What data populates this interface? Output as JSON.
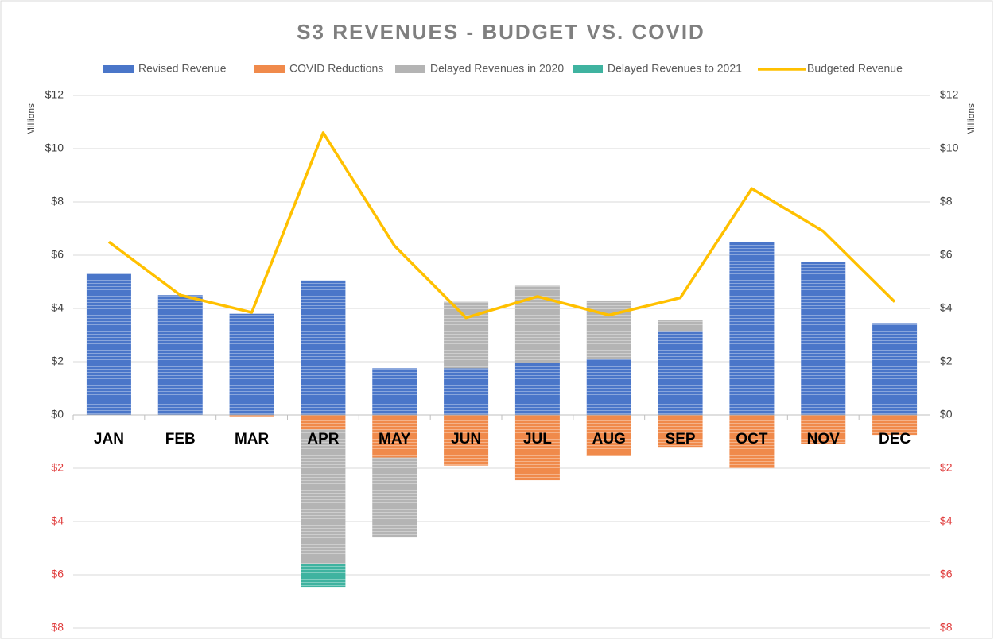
{
  "chart_data": {
    "type": "bar",
    "title": "S3 REVENUES - BUDGET VS. COVID",
    "y_label": "Millions",
    "y2_label": "Millions",
    "categories": [
      "JAN",
      "FEB",
      "MAR",
      "APR",
      "MAY",
      "JUN",
      "JUL",
      "AUG",
      "SEP",
      "OCT",
      "NOV",
      "DEC"
    ],
    "series": [
      {
        "name": "Revised Revenue",
        "type": "bar",
        "color": "#4a76c9",
        "values": [
          5.3,
          4.5,
          3.8,
          5.05,
          1.75,
          1.75,
          1.95,
          2.1,
          3.15,
          6.5,
          5.75,
          3.45
        ]
      },
      {
        "name": "COVID Reductions",
        "type": "bar",
        "color": "#f08a4b",
        "values": [
          0,
          0,
          -0.05,
          -0.55,
          -1.6,
          -1.9,
          -2.45,
          -1.55,
          -1.2,
          -2.0,
          -1.1,
          -0.75
        ]
      },
      {
        "name": "Delayed Revenues in 2020",
        "type": "bar",
        "color": "#b4b4b4",
        "values": [
          0,
          0,
          0,
          -5.05,
          -3.0,
          2.5,
          2.9,
          2.2,
          0.4,
          0,
          0,
          0
        ]
      },
      {
        "name": "Delayed Revenues to 2021",
        "type": "bar",
        "color": "#3fb3a0",
        "values": [
          0,
          0,
          0,
          -0.85,
          0,
          0,
          0,
          0,
          0,
          0,
          0,
          0
        ]
      },
      {
        "name": "Budgeted Revenue",
        "type": "line",
        "axis": "y2",
        "color": "#ffc000",
        "values": [
          6.5,
          4.5,
          3.85,
          10.6,
          6.35,
          3.65,
          4.45,
          3.75,
          4.4,
          8.5,
          6.9,
          4.25
        ]
      }
    ],
    "ylim": [
      -8,
      12
    ],
    "yticks": [
      {
        "value": 12,
        "label": "$12"
      },
      {
        "value": 10,
        "label": "$10"
      },
      {
        "value": 8,
        "label": "$8"
      },
      {
        "value": 6,
        "label": "$6"
      },
      {
        "value": 4,
        "label": "$4"
      },
      {
        "value": 2,
        "label": "$2"
      },
      {
        "value": 0,
        "label": "$0"
      },
      {
        "value": -2,
        "label": "$2"
      },
      {
        "value": -4,
        "label": "$4"
      },
      {
        "value": -6,
        "label": "$6"
      },
      {
        "value": -8,
        "label": "$8"
      }
    ],
    "y2lim": [
      -8,
      12
    ],
    "y2ticks": [
      {
        "value": 12,
        "label": "$12"
      },
      {
        "value": 10,
        "label": "$10"
      },
      {
        "value": 8,
        "label": "$8"
      },
      {
        "value": 6,
        "label": "$6"
      },
      {
        "value": 4,
        "label": "$4"
      },
      {
        "value": 2,
        "label": "$2"
      },
      {
        "value": 0,
        "label": "$0"
      },
      {
        "value": -2,
        "label": "$2"
      },
      {
        "value": -4,
        "label": "$4"
      },
      {
        "value": -6,
        "label": "$6"
      },
      {
        "value": -8,
        "label": "$8"
      }
    ],
    "grid": true,
    "legend": "top"
  }
}
